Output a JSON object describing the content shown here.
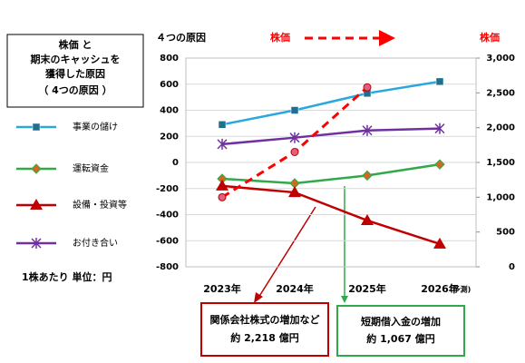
{
  "chart_data": {
    "type": "line",
    "title_lines": [
      "株価 と",
      "期末のキャッシュを",
      "獲得した原因",
      "（ 4つの原因 ）"
    ],
    "subtitle": "４つの原因",
    "price_label": "株価",
    "y2_label": "株価",
    "unit_note": "1株あたり 単位：円",
    "forecast_note": "(予測)",
    "categories": [
      "2023年",
      "2024年",
      "2025年",
      "2026年"
    ],
    "series": [
      {
        "name": "事業の儲け",
        "color": "#29a8e0",
        "marker": "square",
        "marker_color": "#1f6f8f",
        "values": [
          290,
          400,
          530,
          620
        ]
      },
      {
        "name": "運転資金",
        "color": "#2eaa4a",
        "marker": "diamond",
        "marker_color": "#d2691e",
        "values": [
          -125,
          -160,
          -100,
          -15
        ]
      },
      {
        "name": "設備・投資等",
        "color": "#c00000",
        "marker": "triangle",
        "marker_color": "#c00000",
        "values": [
          -180,
          -230,
          -445,
          -625
        ]
      },
      {
        "name": "お付き合い",
        "color": "#7030a0",
        "marker": "star",
        "marker_color": "#7030a0",
        "values": [
          140,
          190,
          245,
          260
        ]
      },
      {
        "name": "株価",
        "color": "#ff0000",
        "marker": "circle",
        "marker_color": "#e06080",
        "dashed": true,
        "axis": "y2",
        "values": [
          1000,
          1650,
          2580,
          null
        ]
      }
    ],
    "legend_series": [
      0,
      1,
      2,
      3
    ],
    "ylim": [
      -800,
      800
    ],
    "yticks": [
      -800,
      -600,
      -400,
      -200,
      0,
      200,
      400,
      600,
      800
    ],
    "y2lim": [
      0,
      3000
    ],
    "y2ticks": [
      0,
      500,
      {
        "value": 1000,
        "label": "1,000"
      },
      {
        "value": 1500,
        "label": "1,500"
      },
      {
        "value": 2000,
        "label": "2,000"
      },
      {
        "value": 2500,
        "label": "2,500"
      },
      {
        "value": 3000,
        "label": "3,000"
      }
    ],
    "grid": true,
    "annotations": [
      {
        "lines": [
          "関係会社株式の増加など",
          "約 2,218 億円"
        ],
        "color": "#c00000"
      },
      {
        "lines": [
          "短期借入金の増加",
          "約 1,067 億円"
        ],
        "color": "#2eaa4a"
      }
    ]
  }
}
